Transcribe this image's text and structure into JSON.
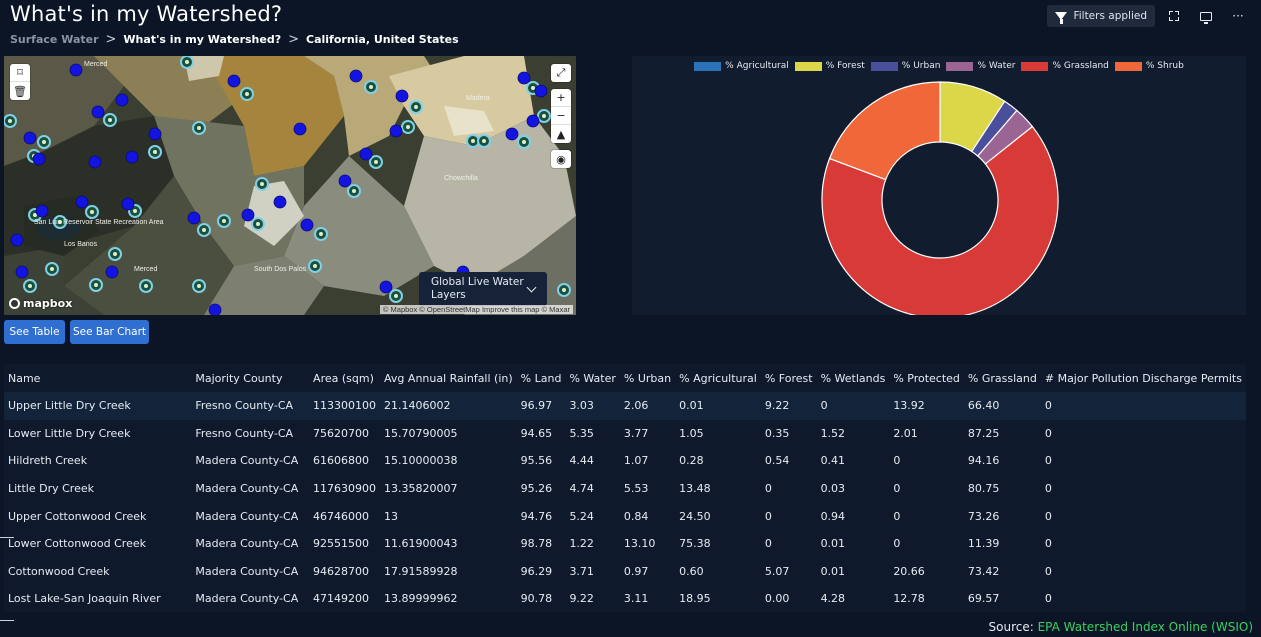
{
  "page": {
    "title": "What's in my Watershed?",
    "breadcrumb": [
      "Surface Water",
      "What's in my Watershed?",
      "California, United States"
    ],
    "breadcrumb_sep": ">"
  },
  "toolbar": {
    "filters_label": "Filters applied",
    "more_label": "···"
  },
  "map": {
    "layers_label": "Global Live Water Layers",
    "logo": "mapbox",
    "attribution": "© Mapbox © OpenStreetMap Improve this map © Maxar",
    "place_labels": [
      "Madera",
      "Chowchilla",
      "San Luis Reservoir State Recreation Area",
      "South Dos Palos",
      "Merced",
      "Los Banos"
    ],
    "controls": {
      "zoom_in": "+",
      "zoom_out": "−"
    }
  },
  "buttons": {
    "see_table": "See Table",
    "see_bar_chart": "See Bar Chart"
  },
  "chart_data": {
    "type": "pie",
    "donut": true,
    "legend_position": "top",
    "labels": [
      "% Agricultural",
      "% Forest",
      "% Urban",
      "% Water",
      "% Grassland",
      "% Shrub"
    ],
    "values": [
      0.01,
      9.22,
      2.06,
      3.03,
      66.4,
      19.28
    ],
    "colors": [
      "#2a73b8",
      "#dcd649",
      "#4a4f9c",
      "#9a6592",
      "#d83a37",
      "#f0673a"
    ]
  },
  "table": {
    "columns": [
      "Name",
      "Majority County",
      "Area (sqm)",
      "Avg Annual Rainfall (in)",
      "% Land",
      "% Water",
      "% Urban",
      "% Agricultural",
      "% Forest",
      "% Wetlands",
      "% Protected",
      "% Grassland",
      "# Major Pollution Discharge Permits"
    ],
    "rows": [
      [
        "Upper Little Dry Creek",
        "Fresno County-CA",
        "113300100",
        "21.1406002",
        "96.97",
        "3.03",
        "2.06",
        "0.01",
        "9.22",
        "0",
        "13.92",
        "66.40",
        "0"
      ],
      [
        "Lower Little Dry Creek",
        "Fresno County-CA",
        "75620700",
        "15.70790005",
        "94.65",
        "5.35",
        "3.77",
        "1.05",
        "0.35",
        "1.52",
        "2.01",
        "87.25",
        "0"
      ],
      [
        "Hildreth Creek",
        "Madera County-CA",
        "61606800",
        "15.10000038",
        "95.56",
        "4.44",
        "1.07",
        "0.28",
        "0.54",
        "0.41",
        "0",
        "94.16",
        "0"
      ],
      [
        "Little Dry Creek",
        "Madera County-CA",
        "117630900",
        "13.35820007",
        "95.26",
        "4.74",
        "5.53",
        "13.48",
        "0",
        "0.03",
        "0",
        "80.75",
        "0"
      ],
      [
        "Upper Cottonwood Creek",
        "Madera County-CA",
        "46746000",
        "13",
        "94.76",
        "5.24",
        "0.84",
        "24.50",
        "0",
        "0.94",
        "0",
        "73.26",
        "0"
      ],
      [
        "Lower Cottonwood Creek",
        "Madera County-CA",
        "92551500",
        "11.61900043",
        "98.78",
        "1.22",
        "13.10",
        "75.38",
        "0",
        "0.01",
        "0",
        "11.39",
        "0"
      ],
      [
        "Cottonwood Creek",
        "Madera County-CA",
        "94628700",
        "17.91589928",
        "96.29",
        "3.71",
        "0.97",
        "0.60",
        "5.07",
        "0.01",
        "20.66",
        "73.42",
        "0"
      ],
      [
        "Lost Lake-San Joaquin River",
        "Madera County-CA",
        "47149200",
        "13.89999962",
        "90.78",
        "9.22",
        "3.11",
        "18.95",
        "0.00",
        "4.28",
        "12.78",
        "69.57",
        "0"
      ]
    ]
  },
  "source": {
    "prefix": "Source: ",
    "link": "EPA Watershed Index Online (WSIO)"
  }
}
